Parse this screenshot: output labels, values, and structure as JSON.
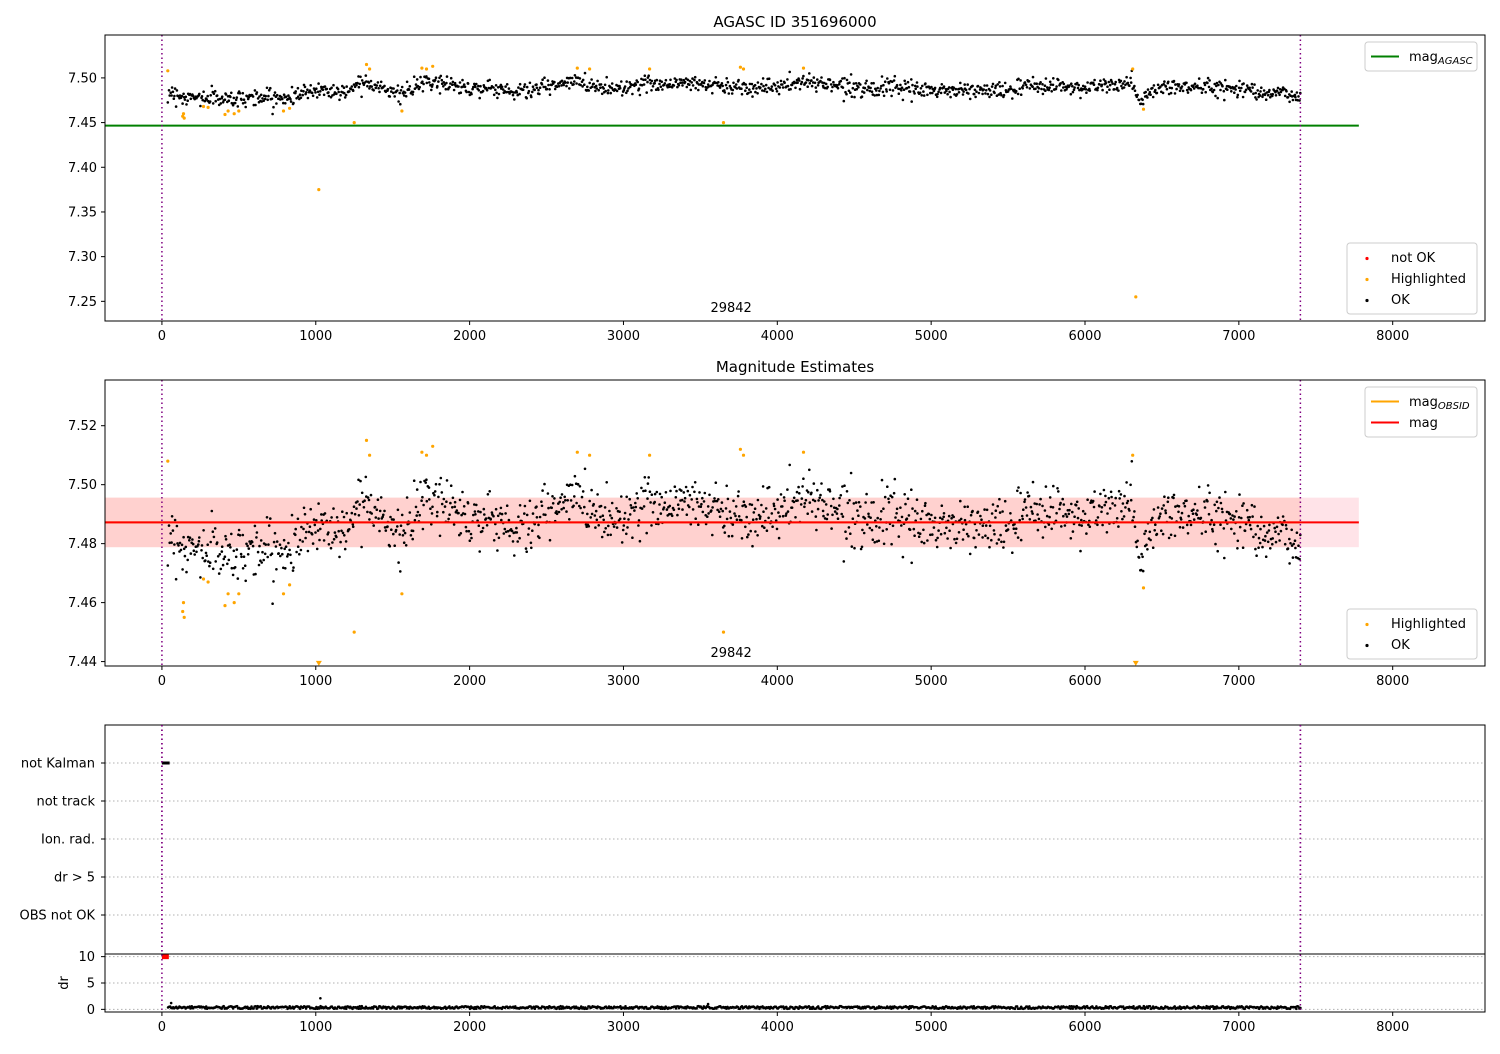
{
  "colors": {
    "ok": "#000000",
    "highlighted": "#ffa500",
    "not_ok": "#ff0000",
    "agasc_line": "#008000",
    "obsid_line": "#ffa500",
    "mag_line": "#ff0000",
    "obsid_band": "#ffa07a",
    "mag_band": "#ffc0cb",
    "obs_boundary": "#800080",
    "gridline": "#b0b0b0"
  },
  "chart_data": [
    {
      "name": "agasc-panel",
      "type": "scatter",
      "title": "AGASC ID 351696000",
      "xlabel": "",
      "ylabel": "",
      "xlim": [
        -370,
        8600
      ],
      "ylim": [
        7.228,
        7.548
      ],
      "xticks": [
        0,
        1000,
        2000,
        3000,
        4000,
        5000,
        6000,
        7000,
        8000
      ],
      "xtick_labels": [
        "0",
        "1000",
        "2000",
        "3000",
        "4000",
        "5000",
        "6000",
        "7000",
        "8000"
      ],
      "yticks": [
        7.25,
        7.3,
        7.35,
        7.4,
        7.45,
        7.5
      ],
      "ytick_labels": [
        "7.25",
        "7.30",
        "7.35",
        "7.40",
        "7.45",
        "7.50"
      ],
      "grid": false,
      "obs_boundaries": [
        0,
        7400
      ],
      "obs_label": {
        "text": "29842",
        "x": 3700
      },
      "reference_lines": [
        {
          "name": "mag_AGASC",
          "y": 7.4466,
          "x_range": [
            -370,
            7780
          ]
        }
      ],
      "series": [
        {
          "name": "OK",
          "baseline": [
            [
              40,
              7.485
            ],
            [
              150,
              7.478
            ],
            [
              300,
              7.478
            ],
            [
              450,
              7.476
            ],
            [
              600,
              7.479
            ],
            [
              800,
              7.477
            ],
            [
              1000,
              7.487
            ],
            [
              1200,
              7.484
            ],
            [
              1300,
              7.498
            ],
            [
              1400,
              7.492
            ],
            [
              1550,
              7.481
            ],
            [
              1700,
              7.494
            ],
            [
              1800,
              7.495
            ],
            [
              2000,
              7.489
            ],
            [
              2200,
              7.488
            ],
            [
              2300,
              7.484
            ],
            [
              2500,
              7.49
            ],
            [
              2700,
              7.496
            ],
            [
              2900,
              7.488
            ],
            [
              3200,
              7.494
            ],
            [
              3500,
              7.494
            ],
            [
              3700,
              7.49
            ],
            [
              4000,
              7.49
            ],
            [
              4200,
              7.496
            ],
            [
              4500,
              7.49
            ],
            [
              5000,
              7.486
            ],
            [
              5500,
              7.486
            ],
            [
              5700,
              7.492
            ],
            [
              6000,
              7.489
            ],
            [
              6300,
              7.494
            ],
            [
              6350,
              7.475
            ],
            [
              6500,
              7.49
            ],
            [
              7000,
              7.489
            ],
            [
              7400,
              7.479
            ]
          ],
          "spread": 0.0045,
          "samples": 1400
        },
        {
          "name": "Highlighted",
          "points": [
            [
              38,
              7.508
            ],
            [
              135,
              7.457
            ],
            [
              140,
              7.46
            ],
            [
              145,
              7.455
            ],
            [
              270,
              7.468
            ],
            [
              300,
              7.467
            ],
            [
              410,
              7.459
            ],
            [
              430,
              7.463
            ],
            [
              470,
              7.46
            ],
            [
              500,
              7.463
            ],
            [
              790,
              7.463
            ],
            [
              830,
              7.466
            ],
            [
              1020,
              7.375
            ],
            [
              1250,
              7.45
            ],
            [
              1330,
              7.515
            ],
            [
              1350,
              7.51
            ],
            [
              1560,
              7.463
            ],
            [
              1690,
              7.511
            ],
            [
              1720,
              7.51
            ],
            [
              1760,
              7.513
            ],
            [
              2700,
              7.511
            ],
            [
              2780,
              7.51
            ],
            [
              3170,
              7.51
            ],
            [
              3650,
              7.45
            ],
            [
              3760,
              7.512
            ],
            [
              3780,
              7.51
            ],
            [
              4170,
              7.511
            ],
            [
              6310,
              7.51
            ],
            [
              6330,
              7.255
            ],
            [
              6380,
              7.465
            ]
          ]
        },
        {
          "name": "not OK",
          "points": []
        }
      ],
      "legends": [
        {
          "placement": "top-right",
          "entries": [
            {
              "label": "mag",
              "sub": "AGASC",
              "kind": "line",
              "color_key": "agasc_line"
            }
          ]
        },
        {
          "placement": "lower-right",
          "entries": [
            {
              "label": "not OK",
              "kind": "dot",
              "color_key": "not_ok"
            },
            {
              "label": "Highlighted",
              "kind": "dot",
              "color_key": "highlighted"
            },
            {
              "label": "OK",
              "kind": "dot",
              "color_key": "ok"
            }
          ]
        }
      ]
    },
    {
      "name": "estimates-panel",
      "type": "scatter",
      "title": "Magnitude Estimates",
      "xlabel": "",
      "ylabel": "",
      "xlim": [
        -370,
        8600
      ],
      "ylim": [
        7.4385,
        7.5355
      ],
      "xticks": [
        0,
        1000,
        2000,
        3000,
        4000,
        5000,
        6000,
        7000,
        8000
      ],
      "xtick_labels": [
        "0",
        "1000",
        "2000",
        "3000",
        "4000",
        "5000",
        "6000",
        "7000",
        "8000"
      ],
      "yticks": [
        7.44,
        7.46,
        7.48,
        7.5,
        7.52
      ],
      "ytick_labels": [
        "7.44",
        "7.46",
        "7.48",
        "7.50",
        "7.52"
      ],
      "grid": false,
      "obs_boundaries": [
        0,
        7400
      ],
      "obs_label": {
        "text": "29842",
        "x": 3700
      },
      "reference_lines": [
        {
          "name": "mag_OBSID",
          "y": 7.4872,
          "x_range": [
            -370,
            7400
          ],
          "band": [
            7.4788,
            7.4956
          ]
        },
        {
          "name": "mag",
          "y": 7.4872,
          "x_range": [
            -370,
            7780
          ],
          "band": [
            7.4788,
            7.4956
          ]
        }
      ],
      "series": [
        {
          "name": "OK",
          "baseline": [
            [
              40,
              7.485
            ],
            [
              150,
              7.478
            ],
            [
              300,
              7.478
            ],
            [
              450,
              7.476
            ],
            [
              600,
              7.479
            ],
            [
              800,
              7.477
            ],
            [
              1000,
              7.487
            ],
            [
              1200,
              7.484
            ],
            [
              1300,
              7.498
            ],
            [
              1400,
              7.492
            ],
            [
              1550,
              7.481
            ],
            [
              1700,
              7.494
            ],
            [
              1800,
              7.495
            ],
            [
              2000,
              7.489
            ],
            [
              2200,
              7.488
            ],
            [
              2300,
              7.484
            ],
            [
              2500,
              7.49
            ],
            [
              2700,
              7.496
            ],
            [
              2900,
              7.488
            ],
            [
              3200,
              7.494
            ],
            [
              3500,
              7.494
            ],
            [
              3700,
              7.49
            ],
            [
              4000,
              7.49
            ],
            [
              4200,
              7.496
            ],
            [
              4500,
              7.49
            ],
            [
              5000,
              7.486
            ],
            [
              5500,
              7.486
            ],
            [
              5700,
              7.492
            ],
            [
              6000,
              7.489
            ],
            [
              6300,
              7.494
            ],
            [
              6350,
              7.475
            ],
            [
              6500,
              7.49
            ],
            [
              7000,
              7.489
            ],
            [
              7400,
              7.479
            ]
          ],
          "spread": 0.0045,
          "samples": 1400
        },
        {
          "name": "Highlighted",
          "points": [
            [
              38,
              7.508
            ],
            [
              135,
              7.457
            ],
            [
              140,
              7.46
            ],
            [
              145,
              7.455
            ],
            [
              270,
              7.468
            ],
            [
              300,
              7.467
            ],
            [
              410,
              7.459
            ],
            [
              430,
              7.463
            ],
            [
              470,
              7.46
            ],
            [
              500,
              7.463
            ],
            [
              790,
              7.463
            ],
            [
              830,
              7.466
            ],
            [
              1250,
              7.45
            ],
            [
              1330,
              7.515
            ],
            [
              1350,
              7.51
            ],
            [
              1560,
              7.463
            ],
            [
              1690,
              7.511
            ],
            [
              1720,
              7.51
            ],
            [
              1760,
              7.513
            ],
            [
              2700,
              7.511
            ],
            [
              2780,
              7.51
            ],
            [
              3170,
              7.51
            ],
            [
              3650,
              7.45
            ],
            [
              3760,
              7.512
            ],
            [
              3780,
              7.51
            ],
            [
              4170,
              7.511
            ],
            [
              6310,
              7.51
            ],
            [
              6380,
              7.465
            ]
          ]
        },
        {
          "name": "Highlighted (clipped)",
          "points": [
            [
              1020,
              7.4392
            ],
            [
              6330,
              7.4392
            ]
          ]
        }
      ],
      "legends": [
        {
          "placement": "top-right",
          "entries": [
            {
              "label": "mag",
              "sub": "OBSID",
              "kind": "line",
              "color_key": "obsid_line"
            },
            {
              "label": "mag",
              "kind": "line",
              "color_key": "mag_line"
            }
          ]
        },
        {
          "placement": "lower-right",
          "entries": [
            {
              "label": "Highlighted",
              "kind": "dot",
              "color_key": "highlighted"
            },
            {
              "label": "OK",
              "kind": "dot",
              "color_key": "ok"
            }
          ]
        }
      ]
    },
    {
      "name": "flags-panel",
      "type": "scatter",
      "title": "",
      "xlabel": "",
      "ylabel": "",
      "xlim": [
        -370,
        8600
      ],
      "categories": [
        "not Kalman",
        "not track",
        "Ion. rad.",
        "dr > 5",
        "OBS not OK"
      ],
      "grid": true,
      "obs_boundaries": [
        0,
        7400
      ],
      "series": [
        {
          "name": "not Kalman",
          "category": "not Kalman",
          "x_range": [
            0,
            50
          ]
        }
      ]
    },
    {
      "name": "dr-panel",
      "type": "scatter",
      "title": "",
      "xlabel": "",
      "ylabel": "dr",
      "xlim": [
        -370,
        8600
      ],
      "ylim": [
        -0.5,
        10.5
      ],
      "xticks": [
        0,
        1000,
        2000,
        3000,
        4000,
        5000,
        6000,
        7000,
        8000
      ],
      "xtick_labels": [
        "0",
        "1000",
        "2000",
        "3000",
        "4000",
        "5000",
        "6000",
        "7000",
        "8000"
      ],
      "yticks": [
        0,
        5,
        10
      ],
      "ytick_labels": [
        "0",
        "5",
        "10"
      ],
      "grid": true,
      "obs_boundaries": [
        0,
        7400
      ],
      "series": [
        {
          "name": "dr",
          "mean": 0.35,
          "spread": 0.25,
          "samples": 1100,
          "outliers": [
            [
              1030,
              2.1
            ],
            [
              60,
              1.2
            ],
            [
              3550,
              1.0
            ]
          ]
        },
        {
          "name": "dr clipped",
          "x_range": [
            0,
            45
          ],
          "value": 10
        }
      ]
    }
  ]
}
